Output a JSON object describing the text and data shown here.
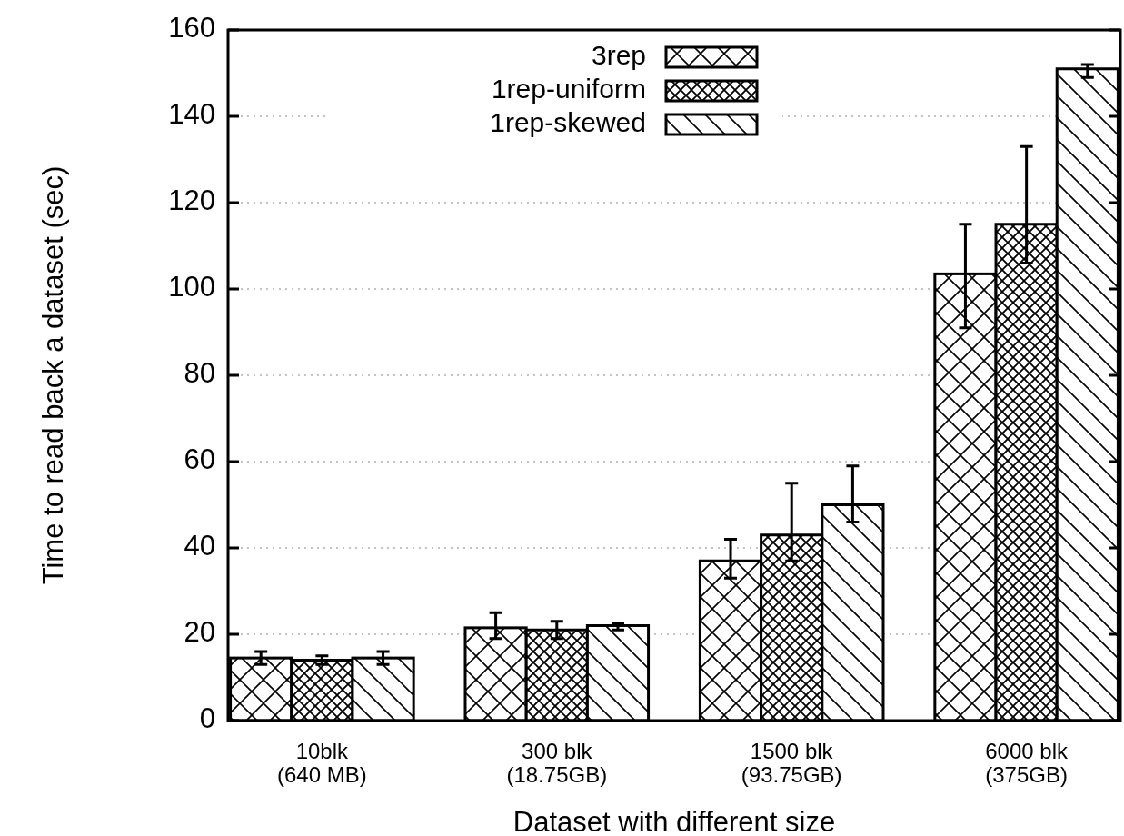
{
  "chart_data": {
    "type": "bar",
    "xlabel": "Dataset with different size",
    "ylabel": "Time to read back a dataset (sec)",
    "categories": [
      "10blk\n(640 MB)",
      "300 blk\n(18.75GB)",
      "1500 blk\n(93.75GB)",
      "6000 blk\n(375GB)"
    ],
    "series": [
      {
        "name": "3rep",
        "color": "#000000",
        "values": [
          14.5,
          21.5,
          37,
          103.5
        ],
        "errors": [
          [
            13,
            16
          ],
          [
            19,
            25
          ],
          [
            33,
            42
          ],
          [
            91,
            115
          ]
        ]
      },
      {
        "name": "1rep-uniform",
        "color": "#000000",
        "values": [
          14,
          21,
          43,
          115
        ],
        "errors": [
          [
            13,
            15
          ],
          [
            19,
            23
          ],
          [
            37,
            55
          ],
          [
            106,
            133
          ]
        ]
      },
      {
        "name": "1rep-skewed",
        "color": "#000000",
        "values": [
          14.5,
          22,
          50,
          151
        ],
        "errors": [
          [
            13,
            16
          ],
          [
            21,
            22.5
          ],
          [
            46,
            59
          ],
          [
            149,
            152
          ]
        ]
      }
    ],
    "ylim": [
      0,
      160
    ],
    "yticks": [
      0,
      20,
      40,
      60,
      80,
      100,
      120,
      140,
      160
    ],
    "grid": "y",
    "legend": "top"
  }
}
